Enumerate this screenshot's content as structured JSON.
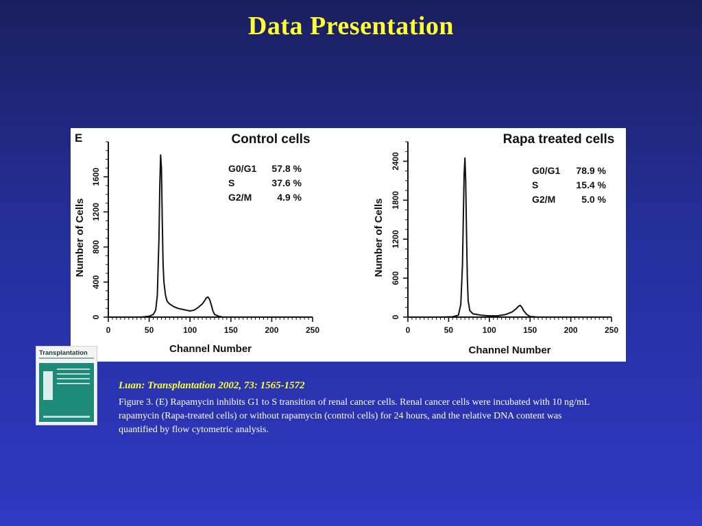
{
  "slide": {
    "title": "Data Presentation"
  },
  "figure": {
    "panel_label": "E"
  },
  "chart_data": [
    {
      "type": "line",
      "title": "Control cells",
      "xlabel": "Channel Number",
      "ylabel": "Number of Cells",
      "xlim": [
        0,
        250
      ],
      "ylim": [
        0,
        2000
      ],
      "xticks": [
        0,
        50,
        100,
        150,
        200,
        250
      ],
      "yticks": [
        0,
        400,
        800,
        1200,
        1600
      ],
      "grid": false,
      "stats": [
        {
          "label": "G0/G1",
          "value": "57.8 %"
        },
        {
          "label": "S",
          "value": "37.6 %"
        },
        {
          "label": "G2/M",
          "value": "4.9 %"
        }
      ],
      "series": [
        {
          "x": [
            0,
            10,
            20,
            30,
            40,
            50,
            55,
            58,
            60,
            62,
            63,
            64,
            65,
            66,
            67,
            68,
            70,
            72,
            75,
            80,
            85,
            90,
            95,
            100,
            105,
            110,
            115,
            118,
            120,
            122,
            124,
            126,
            128,
            130,
            135,
            140,
            150,
            170,
            200,
            220,
            250
          ],
          "y": [
            0,
            0,
            0,
            0,
            0,
            10,
            30,
            80,
            250,
            900,
            1500,
            1850,
            1700,
            1100,
            600,
            400,
            250,
            180,
            150,
            120,
            100,
            90,
            80,
            70,
            80,
            110,
            150,
            190,
            220,
            230,
            200,
            140,
            70,
            30,
            10,
            0,
            0,
            0,
            0,
            0,
            0
          ]
        }
      ]
    },
    {
      "type": "line",
      "title": "Rapa treated cells",
      "xlabel": "Channel Number",
      "ylabel": "Number of Cells",
      "xlim": [
        0,
        250
      ],
      "ylim": [
        0,
        2700
      ],
      "xticks": [
        0,
        50,
        100,
        150,
        200,
        250
      ],
      "yticks": [
        0,
        600,
        1200,
        1800,
        2400
      ],
      "grid": false,
      "stats": [
        {
          "label": "G0/G1",
          "value": "78.9 %"
        },
        {
          "label": "S",
          "value": "15.4 %"
        },
        {
          "label": "G2/M",
          "value": "5.0 %"
        }
      ],
      "series": [
        {
          "x": [
            0,
            20,
            40,
            55,
            62,
            65,
            67,
            68,
            69,
            70,
            71,
            72,
            73,
            74,
            76,
            80,
            85,
            90,
            100,
            110,
            120,
            128,
            133,
            136,
            138,
            140,
            142,
            146,
            150,
            160,
            180,
            200,
            250
          ],
          "y": [
            0,
            0,
            0,
            5,
            30,
            200,
            800,
            1500,
            2200,
            2450,
            2100,
            1300,
            600,
            250,
            100,
            50,
            40,
            30,
            20,
            20,
            40,
            80,
            130,
            170,
            180,
            150,
            100,
            40,
            10,
            0,
            0,
            0,
            0
          ]
        }
      ]
    }
  ],
  "reference": {
    "citation": "Luan: Transplantation 2002, 73: 1565-1572",
    "caption": "Figure 3. (E) Rapamycin inhibits G1 to S transition of renal cancer cells. Renal cancer cells were incubated with 10 ng/mL rapamycin (Rapa-treated cells) or without rapamycin (control cells) for 24 hours, and the relative DNA content was quantified by flow cytometric analysis.",
    "journal_cover_title": "Transplantation"
  }
}
